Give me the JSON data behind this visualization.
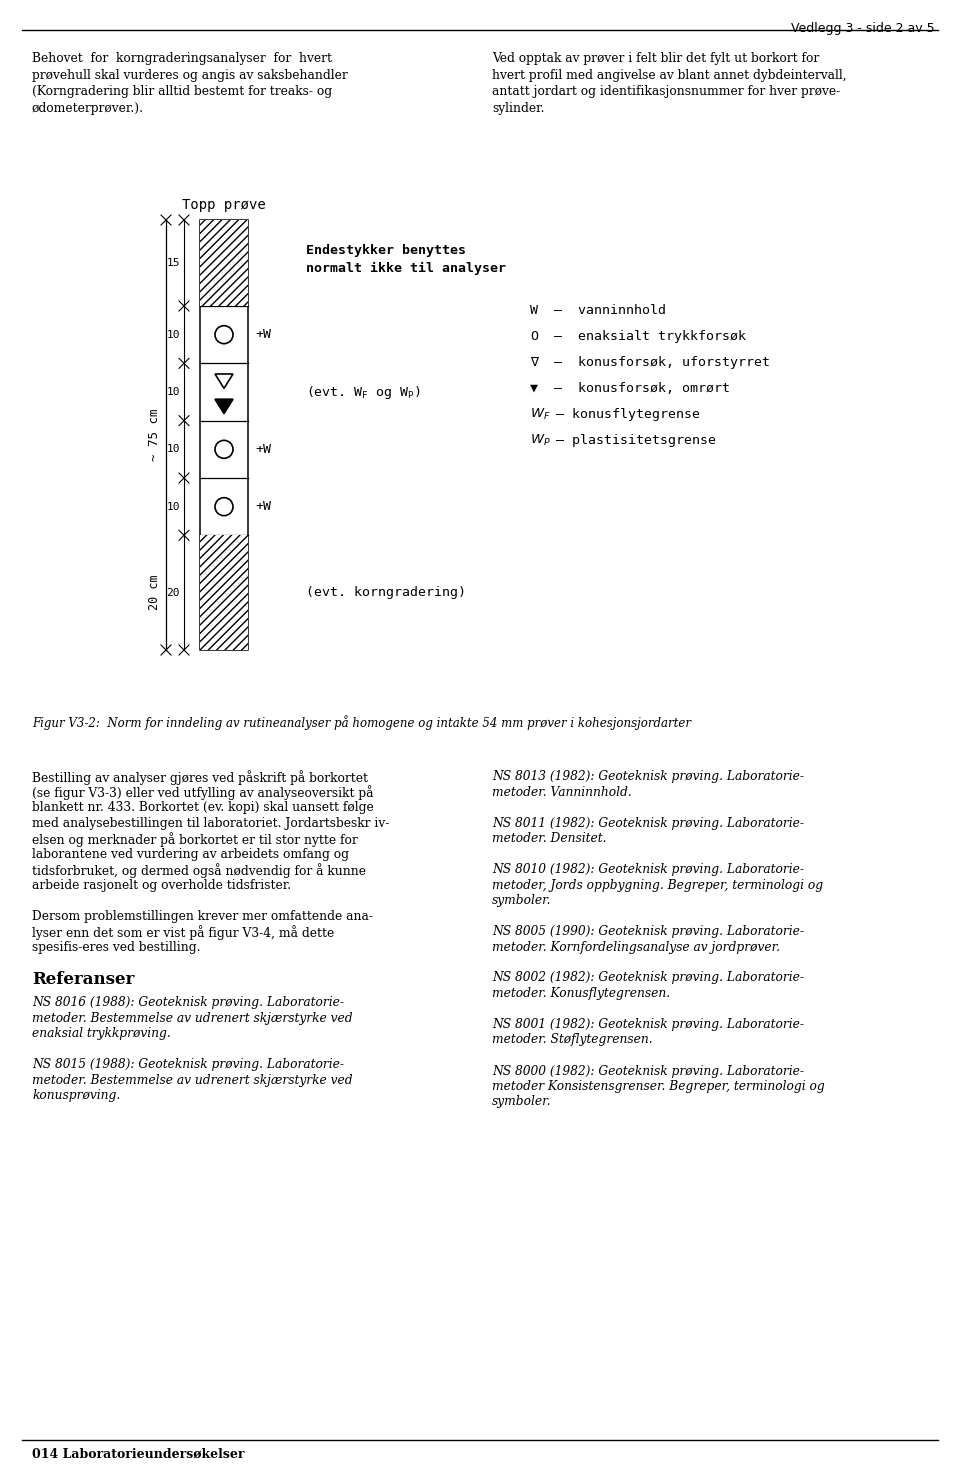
{
  "page_header": "Vedlegg 3 - side 2 av 5",
  "top_left_text": [
    "Behovet  for  korngraderingsanalyser  for  hvert",
    "prøvehull skal vurderes og angis av saksbehandler",
    "(Korngradering blir alltid bestemt for treaks- og",
    "ødometerprøver.)."
  ],
  "top_right_text": [
    "Ved opptak av prøver i felt blir det fylt ut borkort for",
    "hvert profil med angivelse av blant annet dybdeintervall,",
    "antatt jordart og identifikasjonsnummer for hver prøve-",
    "sylinder."
  ],
  "diagram_title": "Topp prøve",
  "label_75cm": "~ 75 cm",
  "right_ann1": "Endestykker benyttes",
  "right_ann2": "normalt ikke til analyser",
  "right_ann3": "(evt. W",
  "right_ann3b": " og W",
  "right_ann4": "(evt. korngradering)",
  "legend_entries": [
    [
      "W",
      " –  vanninnhold"
    ],
    [
      "O",
      " –  enaksialt trykkforsøk"
    ],
    [
      "∇",
      " –  konusforsøk, uforstyrret"
    ],
    [
      "▼",
      " –  konusforsøk, omrørt"
    ],
    [
      "Wⁱ",
      "– konusflytegrense"
    ],
    [
      "Wₚ",
      "– plastisitetsgrense"
    ]
  ],
  "figure_caption": "Figur V3-2:  Norm for inndeling av rutineanalyser på homogene og intakte 54 mm prøver i kohesjonsjordarter",
  "body_left_para1": [
    "Bestilling av analyser gjøres ved påskrift på borkortet",
    "(se figur V3-3) eller ved utfylling av analyseoversikt på",
    "blankett nr. 433. Borkortet (ev. kopi) skal uansett følge",
    "med analysebestillingen til laboratoriet. Jordartsbeskr iv-",
    "elsen og merknader på borkortet er til stor nytte for",
    "laborantene ved vurdering av arbeidets omfang og",
    "tidsforbruket, og dermed også nødvendig for å kunne",
    "arbeide rasjonelt og overholde tidsfrister."
  ],
  "body_left_para2": [
    "Dersom problemstillingen krever mer omfattende ana-",
    "lyser enn det som er vist på figur V3-4, må dette",
    "spesifis-eres ved bestilling."
  ],
  "referanser_heading": "Referanser",
  "body_left_para3": [
    "NS 8016 (1988): Geoteknisk prøving. Laboratorie-",
    "metoder. Bestemmelse av udrenert skjærstyrke ved",
    "enaksial trykkprøving."
  ],
  "body_left_para4": [
    "NS 8015 (1988): Geoteknisk prøving. Laboratorie-",
    "metoder. Bestemmelse av udrenert skjærstyrke ved",
    "konusprøving."
  ],
  "body_right_para1": [
    "NS 8013 (1982): Geoteknisk prøving. Laboratorie-",
    "metoder. Vanninnhold."
  ],
  "body_right_para2": [
    "NS 8011 (1982): Geoteknisk prøving. Laboratorie-",
    "metoder. Densitet."
  ],
  "body_right_para3": [
    "NS 8010 (1982): Geoteknisk prøving. Laboratorie-",
    "metoder, Jords oppbygning. Begreper, terminologi og",
    "symboler."
  ],
  "body_right_para4": [
    "NS 8005 (1990): Geoteknisk prøving. Laboratorie-",
    "metoder. Kornfordelingsanalyse av jordprøver."
  ],
  "body_right_para5": [
    "NS 8002 (1982): Geoteknisk prøving. Laboratorie-",
    "metoder. Konusflytegrensen."
  ],
  "body_right_para6": [
    "NS 8001 (1982): Geoteknisk prøving. Laboratorie-",
    "metoder. Støflytegrensen."
  ],
  "body_right_para7": [
    "NS 8000 (1982): Geoteknisk prøving. Laboratorie-",
    "metoder Konsistensgrenser. Begreper, terminologi og",
    "symboler."
  ],
  "footer_text": "014 Laboratorieundersøkelser",
  "background_color": "#ffffff",
  "text_color": "#000000"
}
